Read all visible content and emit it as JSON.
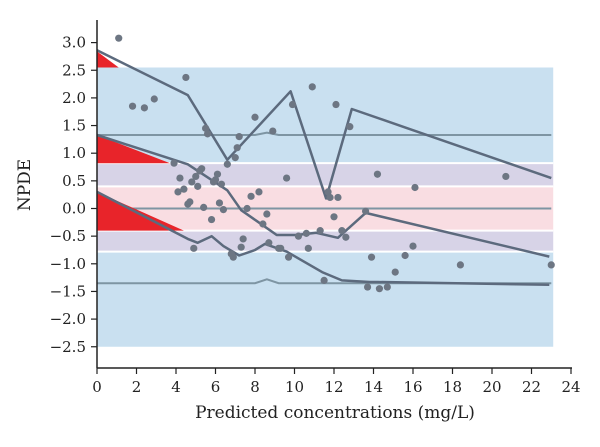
{
  "chart_data": {
    "type": "scatter",
    "title": "",
    "xlabel": "Predicted concentrations (mg/L)",
    "ylabel": "NPDE",
    "xlim": [
      0,
      24
    ],
    "ylim": [
      -2.6,
      3.2
    ],
    "xticks": [
      0,
      2,
      4,
      6,
      8,
      10,
      12,
      14,
      16,
      18,
      20,
      22,
      24
    ],
    "yticks": [
      3.0,
      2.5,
      2.0,
      1.5,
      1.0,
      0.5,
      0.0,
      -0.5,
      -1.0,
      -1.5,
      -2.0,
      -2.5
    ],
    "grid": false,
    "colors": {
      "outer_band": "#c9e0f0",
      "mid_band": "#d7d3e7",
      "inner_band": "#f9dde2",
      "band_separator": "#ffffff",
      "theoretical_line": "#7e95a3",
      "empirical_line": "#5c6a7d",
      "points": "#6d7683",
      "triangles": "#e8242a",
      "axis": "#222222"
    },
    "bands": [
      {
        "role": "pi_upper_percentile",
        "lower": 0.82,
        "upper": 2.55
      },
      {
        "role": "ci_median_outer_upper",
        "lower": 0.4,
        "upper": 0.82
      },
      {
        "role": "ci_median_inner",
        "lower": -0.4,
        "upper": 0.4
      },
      {
        "role": "ci_median_outer_lower",
        "lower": -0.78,
        "upper": -0.4
      },
      {
        "role": "pi_lower_percentile",
        "lower": -2.5,
        "upper": -0.78
      }
    ],
    "theoretical_percentiles": [
      {
        "x": [
          0,
          8,
          8.6,
          9.2,
          23
        ],
        "y": [
          1.33,
          1.33,
          1.37,
          1.33,
          1.33
        ]
      },
      {
        "x": [
          0,
          23
        ],
        "y": [
          0.0,
          0.0
        ]
      },
      {
        "x": [
          0,
          8,
          8.6,
          9.2,
          23
        ],
        "y": [
          -1.35,
          -1.35,
          -1.28,
          -1.35,
          -1.35
        ]
      }
    ],
    "empirical_percentiles": [
      {
        "x": [
          0,
          4.6,
          6.6,
          9.8,
          11.6,
          12.9,
          23
        ],
        "y": [
          2.86,
          2.05,
          0.88,
          2.12,
          0.18,
          1.8,
          0.55
        ]
      },
      {
        "x": [
          0,
          4.6,
          6.6,
          7.3,
          8.1,
          9.1,
          10.1,
          11.1,
          12.2,
          13.6,
          22.9
        ],
        "y": [
          1.33,
          0.8,
          0.33,
          -0.03,
          -0.23,
          -0.48,
          -0.48,
          -0.44,
          -0.53,
          -0.08,
          -0.87
        ]
      },
      {
        "x": [
          0,
          4.6,
          5.1,
          5.8,
          6.4,
          7.2,
          8.0,
          8.5,
          9.6,
          11.4,
          12.4,
          13.8,
          14.2,
          22.9
        ],
        "y": [
          0.3,
          -0.55,
          -0.62,
          -0.5,
          -0.68,
          -0.85,
          -0.75,
          -0.64,
          -0.78,
          -1.15,
          -1.3,
          -1.33,
          -1.33,
          -1.38
        ]
      }
    ],
    "triangles": [
      {
        "x": [
          0,
          1.1,
          0
        ],
        "y": [
          2.84,
          2.55,
          2.55
        ]
      },
      {
        "x": [
          0,
          3.7,
          0
        ],
        "y": [
          1.33,
          0.82,
          0.82
        ]
      },
      {
        "x": [
          0,
          4.4,
          0
        ],
        "y": [
          0.3,
          -0.4,
          -0.4
        ]
      }
    ],
    "points": {
      "x": [
        1.1,
        1.8,
        2.4,
        2.9,
        3.9,
        4.1,
        4.2,
        4.4,
        4.5,
        4.6,
        4.7,
        4.8,
        5.0,
        5.2,
        5.3,
        5.4,
        5.5,
        5.1,
        4.9,
        5.6,
        5.9,
        5.8,
        6.0,
        6.1,
        6.2,
        6.3,
        6.4,
        6.6,
        6.9,
        7.1,
        7.2,
        7.4,
        7.6,
        7.0,
        7.8,
        8.0,
        8.2,
        8.4,
        8.6,
        8.9,
        9.3,
        9.6,
        9.9,
        10.2,
        10.6,
        10.9,
        11.3,
        11.7,
        12.0,
        12.2,
        12.4,
        12.6,
        12.8,
        13.6,
        13.9,
        14.2,
        14.7,
        15.1,
        15.6,
        16.1,
        16.0,
        18.4,
        20.7,
        23.0,
        11.5,
        11.8,
        12.1,
        13.7,
        14.3,
        6.8,
        7.3,
        8.7,
        9.2,
        9.7,
        10.7
      ],
      "y": [
        3.08,
        1.85,
        1.82,
        1.98,
        0.82,
        0.3,
        0.55,
        0.35,
        2.37,
        0.08,
        0.12,
        0.48,
        0.58,
        0.68,
        0.72,
        0.02,
        1.45,
        0.4,
        -0.72,
        1.35,
        0.48,
        -0.2,
        0.52,
        0.62,
        0.1,
        0.44,
        -0.02,
        0.8,
        -0.88,
        1.1,
        1.3,
        -0.55,
        0.0,
        0.92,
        0.22,
        1.65,
        0.3,
        -0.28,
        -0.1,
        1.4,
        -0.72,
        0.55,
        1.88,
        -0.5,
        -0.45,
        2.2,
        -0.4,
        0.3,
        -0.15,
        0.2,
        -0.4,
        -0.52,
        1.48,
        -0.05,
        -0.88,
        0.62,
        -1.42,
        -1.15,
        -0.85,
        0.38,
        -0.68,
        -1.02,
        0.58,
        -1.02,
        -1.3,
        0.2,
        1.88,
        -1.42,
        -1.45,
        -0.82,
        -0.7,
        -0.62,
        -0.72,
        -0.88,
        -0.72
      ]
    }
  }
}
